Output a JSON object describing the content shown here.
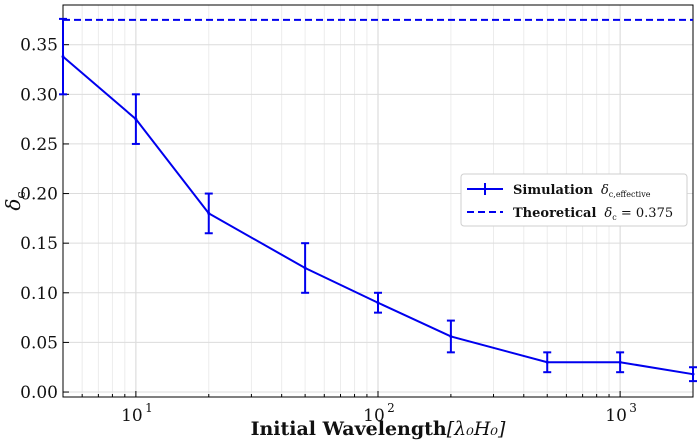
{
  "chart_data": {
    "type": "line",
    "xscale": "log",
    "xlim": [
      5,
      2000
    ],
    "ylim": [
      -0.005,
      0.39
    ],
    "xlabel_bold": "Initial Wavelength",
    "xlabel_math": "[λ₀H₀]",
    "ylabel": "δ",
    "ylabel_sub": "c",
    "x_ticks": [
      {
        "value": 10,
        "base": "10",
        "exp": "1"
      },
      {
        "value": 100,
        "base": "10",
        "exp": "2"
      },
      {
        "value": 1000,
        "base": "10",
        "exp": "3"
      }
    ],
    "y_ticks": [
      {
        "value": 0.0,
        "label": "0.00"
      },
      {
        "value": 0.05,
        "label": "0.05"
      },
      {
        "value": 0.1,
        "label": "0.10"
      },
      {
        "value": 0.15,
        "label": "0.15"
      },
      {
        "value": 0.2,
        "label": "0.20"
      },
      {
        "value": 0.25,
        "label": "0.25"
      },
      {
        "value": 0.3,
        "label": "0.30"
      },
      {
        "value": 0.35,
        "label": "0.35"
      }
    ],
    "series": [
      {
        "name": "Simulation",
        "math": "δ",
        "math_sub": "c,effective",
        "color": "#0000ee",
        "x": [
          5,
          10,
          20,
          50,
          100,
          200,
          500,
          1000,
          2000
        ],
        "y": [
          0.338,
          0.275,
          0.18,
          0.125,
          0.09,
          0.056,
          0.03,
          0.03,
          0.018
        ],
        "yerr": [
          0.038,
          0.025,
          0.02,
          0.025,
          0.01,
          0.016,
          0.01,
          0.01,
          0.007
        ]
      },
      {
        "name": "Theoretical",
        "math": "δ",
        "math_sub": "c",
        "math_value": " = 0.375",
        "color": "#0000ee",
        "style": "dashed",
        "y_const": 0.375
      }
    ],
    "legend_position": "center-right",
    "grid": true
  }
}
